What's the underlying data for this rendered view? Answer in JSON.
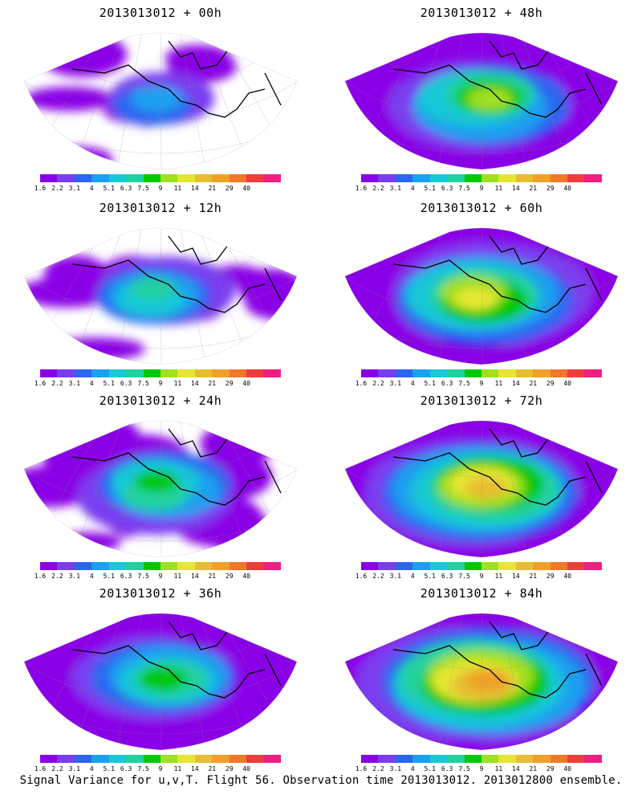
{
  "colorbar": {
    "colors": [
      "#8a00e6",
      "#7a3cf0",
      "#2a66f0",
      "#1aa0f0",
      "#18c8d8",
      "#20d2a0",
      "#00c800",
      "#a0e020",
      "#e6e632",
      "#e6be32",
      "#f0a028",
      "#f07828",
      "#f03c3c",
      "#f01e82"
    ],
    "labels": [
      "1.6",
      "2.2",
      "3.1",
      "4",
      "5.1",
      "6.3",
      "7.5",
      "9",
      "11",
      "14",
      "21",
      "29",
      "40"
    ]
  },
  "panels": [
    {
      "title": "2013013012 + 00h",
      "intensity": 0.15
    },
    {
      "title": "2013013012 + 48h",
      "intensity": 0.55
    },
    {
      "title": "2013013012 + 12h",
      "intensity": 0.3
    },
    {
      "title": "2013013012 + 60h",
      "intensity": 0.65
    },
    {
      "title": "2013013012 + 24h",
      "intensity": 0.4
    },
    {
      "title": "2013013012 + 72h",
      "intensity": 0.75
    },
    {
      "title": "2013013012 + 36h",
      "intensity": 0.48
    },
    {
      "title": "2013013012 + 84h",
      "intensity": 0.85
    }
  ],
  "caption": "Signal Variance for u,v,T. Flight 56. Observation time 2013013012. 2013012800 ensemble."
}
